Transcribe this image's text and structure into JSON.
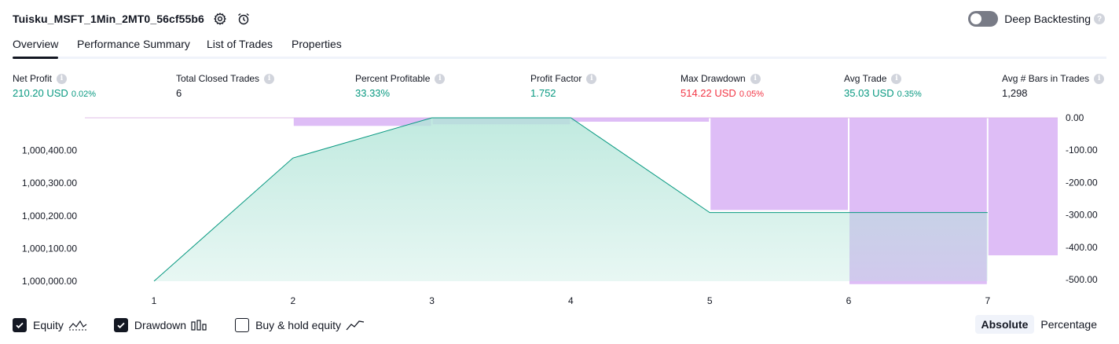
{
  "header": {
    "title": "Tuisku_MSFT_1Min_2MT0_56cf55b6",
    "deep_backtesting_label": "Deep Backtesting",
    "help_glyph": "?"
  },
  "tabs": [
    {
      "label": "Overview",
      "active": true
    },
    {
      "label": "Performance Summary",
      "active": false
    },
    {
      "label": "List of Trades",
      "active": false
    },
    {
      "label": "Properties",
      "active": false
    }
  ],
  "info_glyph": "i",
  "metrics": [
    {
      "label": "Net Profit",
      "value": "210.20 USD",
      "pct": "0.02%",
      "tone": "pos"
    },
    {
      "label": "Total Closed Trades",
      "value": "6",
      "pct": "",
      "tone": "neutral"
    },
    {
      "label": "Percent Profitable",
      "value": "33.33%",
      "pct": "",
      "tone": "pos"
    },
    {
      "label": "Profit Factor",
      "value": "1.752",
      "pct": "",
      "tone": "pos"
    },
    {
      "label": "Max Drawdown",
      "value": "514.22 USD",
      "pct": "0.05%",
      "tone": "neg"
    },
    {
      "label": "Avg Trade",
      "value": "35.03 USD",
      "pct": "0.35%",
      "tone": "pos"
    },
    {
      "label": "Avg # Bars in Trades",
      "value": "1,298",
      "pct": "",
      "tone": "neutral"
    }
  ],
  "chart_data": {
    "type": "area",
    "x": [
      1,
      2,
      3,
      4,
      5,
      6,
      7
    ],
    "equity": {
      "name": "Equity",
      "values": [
        1000000,
        1000377,
        1000500,
        1000500,
        1000210,
        1000210,
        1000210
      ],
      "ylim": [
        1000000,
        1000500
      ],
      "ticks": [
        1000000,
        1000100,
        1000200,
        1000300,
        1000400
      ],
      "tick_labels": [
        "1,000,000.00",
        "1,000,100.00",
        "1,000,200.00",
        "1,000,300.00",
        "1,000,400.00"
      ]
    },
    "drawdown": {
      "name": "Drawdown",
      "bars": [
        {
          "center": 1.5,
          "value": 0
        },
        {
          "center": 2.5,
          "value": -25
        },
        {
          "center": 3.5,
          "value": -20
        },
        {
          "center": 4.5,
          "value": -12
        },
        {
          "center": 5.5,
          "value": -285
        },
        {
          "center": 6.5,
          "value": -514
        },
        {
          "center": 7.5,
          "value": -425
        }
      ],
      "ylim": [
        -500,
        0
      ],
      "ticks": [
        0,
        -100,
        -200,
        -300,
        -400,
        -500
      ],
      "tick_labels": [
        "0.00",
        "-100.00",
        "-200.00",
        "-300.00",
        "-400.00",
        "-500.00"
      ]
    },
    "x_tick_labels": [
      "1",
      "2",
      "3",
      "4",
      "5",
      "6",
      "7"
    ],
    "colors": {
      "equity_line": "#089981",
      "equity_fill": "#b2e5d8",
      "drawdown_bar": "#d8b2f5",
      "drawdown_line": "#e1bee7"
    }
  },
  "legend": {
    "equity": {
      "label": "Equity",
      "checked": true
    },
    "drawdown": {
      "label": "Drawdown",
      "checked": true
    },
    "buy_hold": {
      "label": "Buy & hold equity",
      "checked": false
    }
  },
  "scale": {
    "absolute_label": "Absolute",
    "percentage_label": "Percentage",
    "selected": "Absolute"
  }
}
